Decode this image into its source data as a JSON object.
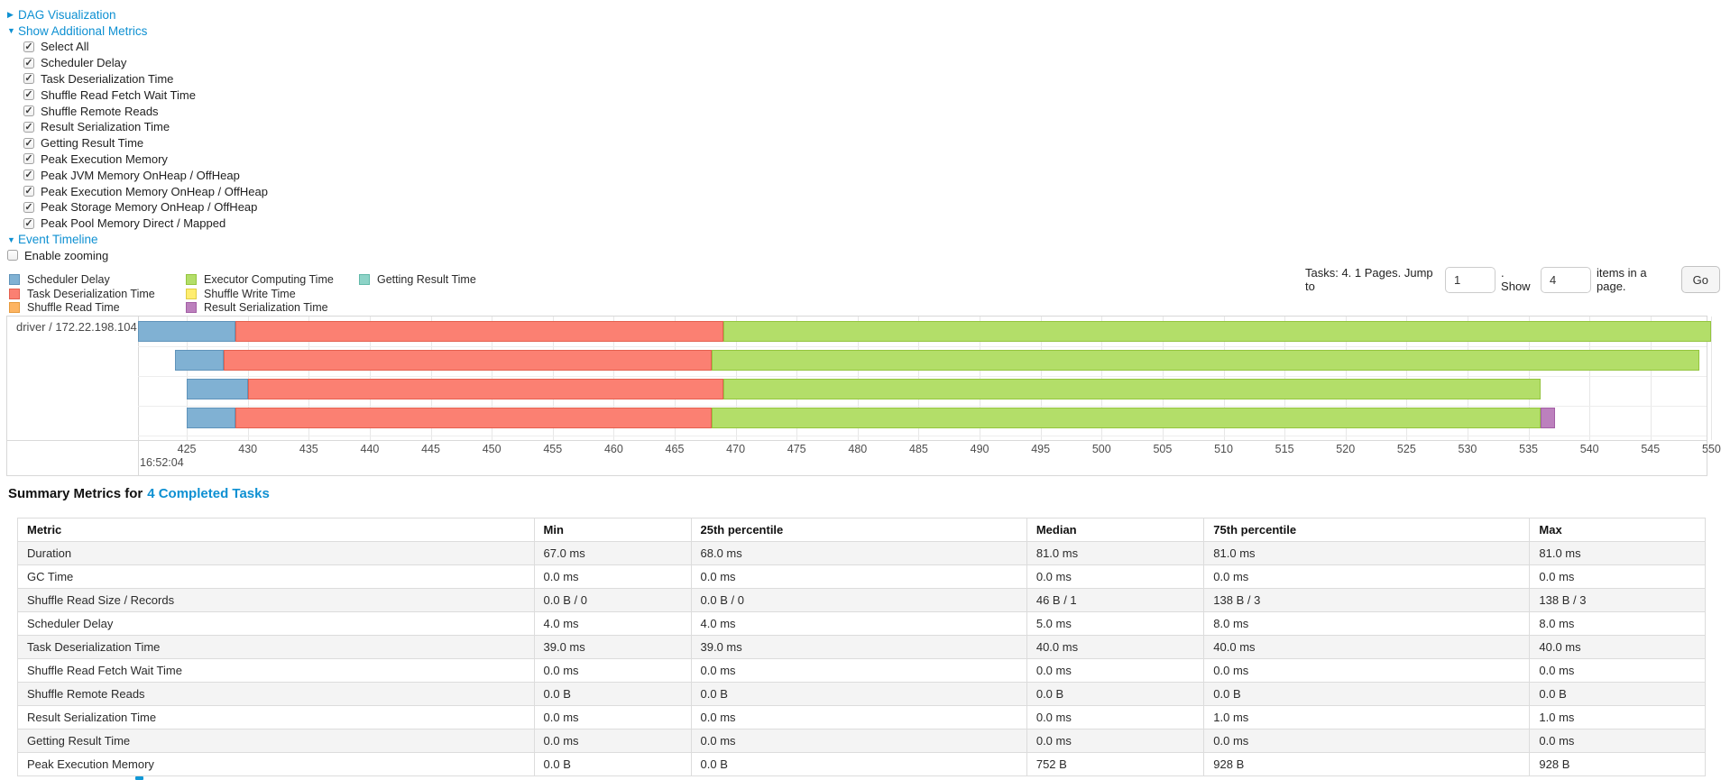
{
  "panels": {
    "dag": {
      "label": "DAG Visualization",
      "arrow": "▶"
    },
    "metrics": {
      "label": "Show Additional Metrics",
      "arrow": "▼"
    },
    "timeline": {
      "label": "Event Timeline",
      "arrow": "▼"
    }
  },
  "metrics_panel": {
    "items": [
      {
        "label": "Select All",
        "checked": true
      },
      {
        "label": "Scheduler Delay",
        "checked": true
      },
      {
        "label": "Task Deserialization Time",
        "checked": true
      },
      {
        "label": "Shuffle Read Fetch Wait Time",
        "checked": true
      },
      {
        "label": "Shuffle Remote Reads",
        "checked": true
      },
      {
        "label": "Result Serialization Time",
        "checked": true
      },
      {
        "label": "Getting Result Time",
        "checked": true
      },
      {
        "label": "Peak Execution Memory",
        "checked": true
      },
      {
        "label": "Peak JVM Memory OnHeap / OffHeap",
        "checked": true
      },
      {
        "label": "Peak Execution Memory OnHeap / OffHeap",
        "checked": true
      },
      {
        "label": "Peak Storage Memory OnHeap / OffHeap",
        "checked": true
      },
      {
        "label": "Peak Pool Memory Direct / Mapped",
        "checked": true
      }
    ]
  },
  "enable_zooming": {
    "label": "Enable zooming",
    "checked": false
  },
  "legend": {
    "items": [
      {
        "label": "Scheduler Delay",
        "color": "#80B1D3",
        "border": "#5f93ba"
      },
      {
        "label": "Task Deserialization Time",
        "color": "#FB8072",
        "border": "#e4604f"
      },
      {
        "label": "Shuffle Read Time",
        "color": "#FDB462",
        "border": "#e69a3e"
      },
      {
        "label": "Executor Computing Time",
        "color": "#B3DE69",
        "border": "#94c53e"
      },
      {
        "label": "Shuffle Write Time",
        "color": "#FFED6F",
        "border": "#e0cd45"
      },
      {
        "label": "Result Serialization Time",
        "color": "#BC80BD",
        "border": "#a35fa5"
      },
      {
        "label": "Getting Result Time",
        "color": "#8DD3C7",
        "border": "#62b9a9"
      }
    ]
  },
  "pagination": {
    "tasks_text": "Tasks: 4. 1 Pages. Jump to",
    "jump_value": "1",
    "show_text": ". Show",
    "show_value": "4",
    "items_text": "items in a page.",
    "go_label": "Go"
  },
  "chart_data": {
    "type": "timeline",
    "group_label": "driver / 172.22.198.104",
    "time_origin_label": "16:52:04",
    "axis": {
      "domain": [
        421,
        549.6
      ],
      "unit": "ms offset within 16:52:04",
      "ticks": [
        425,
        430,
        435,
        440,
        445,
        450,
        455,
        460,
        465,
        470,
        475,
        480,
        485,
        490,
        495,
        500,
        505,
        510,
        515,
        520,
        525,
        530,
        535,
        540,
        545,
        550
      ]
    },
    "colors": {
      "scheduler_delay": {
        "fill": "#80B1D3",
        "border": "#5f93ba"
      },
      "task_deserialization": {
        "fill": "#FB8072",
        "border": "#e4604f"
      },
      "executor_computing": {
        "fill": "#B3DE69",
        "border": "#94c53e"
      },
      "result_serialization": {
        "fill": "#BC80BD",
        "border": "#a35fa5"
      }
    },
    "tasks": [
      {
        "segments": [
          {
            "name": "scheduler_delay",
            "start": 421,
            "end": 429
          },
          {
            "name": "task_deserialization",
            "start": 429,
            "end": 469
          },
          {
            "name": "executor_computing",
            "start": 469,
            "end": 550
          }
        ]
      },
      {
        "segments": [
          {
            "name": "scheduler_delay",
            "start": 424,
            "end": 428
          },
          {
            "name": "task_deserialization",
            "start": 428,
            "end": 468
          },
          {
            "name": "executor_computing",
            "start": 468,
            "end": 549
          }
        ]
      },
      {
        "segments": [
          {
            "name": "scheduler_delay",
            "start": 425,
            "end": 430
          },
          {
            "name": "task_deserialization",
            "start": 430,
            "end": 469
          },
          {
            "name": "executor_computing",
            "start": 469,
            "end": 536
          }
        ]
      },
      {
        "segments": [
          {
            "name": "scheduler_delay",
            "start": 425,
            "end": 429
          },
          {
            "name": "task_deserialization",
            "start": 429,
            "end": 468
          },
          {
            "name": "executor_computing",
            "start": 468,
            "end": 536
          },
          {
            "name": "result_serialization",
            "start": 536,
            "end": 537.2
          }
        ]
      }
    ]
  },
  "summary": {
    "title_prefix": "Summary Metrics for",
    "title_link": "4 Completed Tasks",
    "columns": [
      "Metric",
      "Min",
      "25th percentile",
      "Median",
      "75th percentile",
      "Max"
    ],
    "rows": [
      {
        "metric": "Duration",
        "values": [
          "67.0 ms",
          "68.0 ms",
          "81.0 ms",
          "81.0 ms",
          "81.0 ms"
        ]
      },
      {
        "metric": "GC Time",
        "values": [
          "0.0 ms",
          "0.0 ms",
          "0.0 ms",
          "0.0 ms",
          "0.0 ms"
        ]
      },
      {
        "metric": "Shuffle Read Size / Records",
        "values": [
          "0.0 B / 0",
          "0.0 B / 0",
          "46 B / 1",
          "138 B / 3",
          "138 B / 3"
        ]
      },
      {
        "metric": "Scheduler Delay",
        "values": [
          "4.0 ms",
          "4.0 ms",
          "5.0 ms",
          "8.0 ms",
          "8.0 ms"
        ]
      },
      {
        "metric": "Task Deserialization Time",
        "values": [
          "39.0 ms",
          "39.0 ms",
          "40.0 ms",
          "40.0 ms",
          "40.0 ms"
        ]
      },
      {
        "metric": "Shuffle Read Fetch Wait Time",
        "values": [
          "0.0 ms",
          "0.0 ms",
          "0.0 ms",
          "0.0 ms",
          "0.0 ms"
        ]
      },
      {
        "metric": "Shuffle Remote Reads",
        "values": [
          "0.0 B",
          "0.0 B",
          "0.0 B",
          "0.0 B",
          "0.0 B"
        ]
      },
      {
        "metric": "Result Serialization Time",
        "values": [
          "0.0 ms",
          "0.0 ms",
          "0.0 ms",
          "1.0 ms",
          "1.0 ms"
        ]
      },
      {
        "metric": "Getting Result Time",
        "values": [
          "0.0 ms",
          "0.0 ms",
          "0.0 ms",
          "0.0 ms",
          "0.0 ms"
        ]
      },
      {
        "metric": "Peak Execution Memory",
        "values": [
          "0.0 B",
          "0.0 B",
          "752 B",
          "928 B",
          "928 B"
        ]
      }
    ]
  },
  "colors": {
    "link": "#0e90d2",
    "row_stripe": "#f4f4f4",
    "chart_border": "#d8d8d8",
    "gridline": "#e7e7e7"
  }
}
